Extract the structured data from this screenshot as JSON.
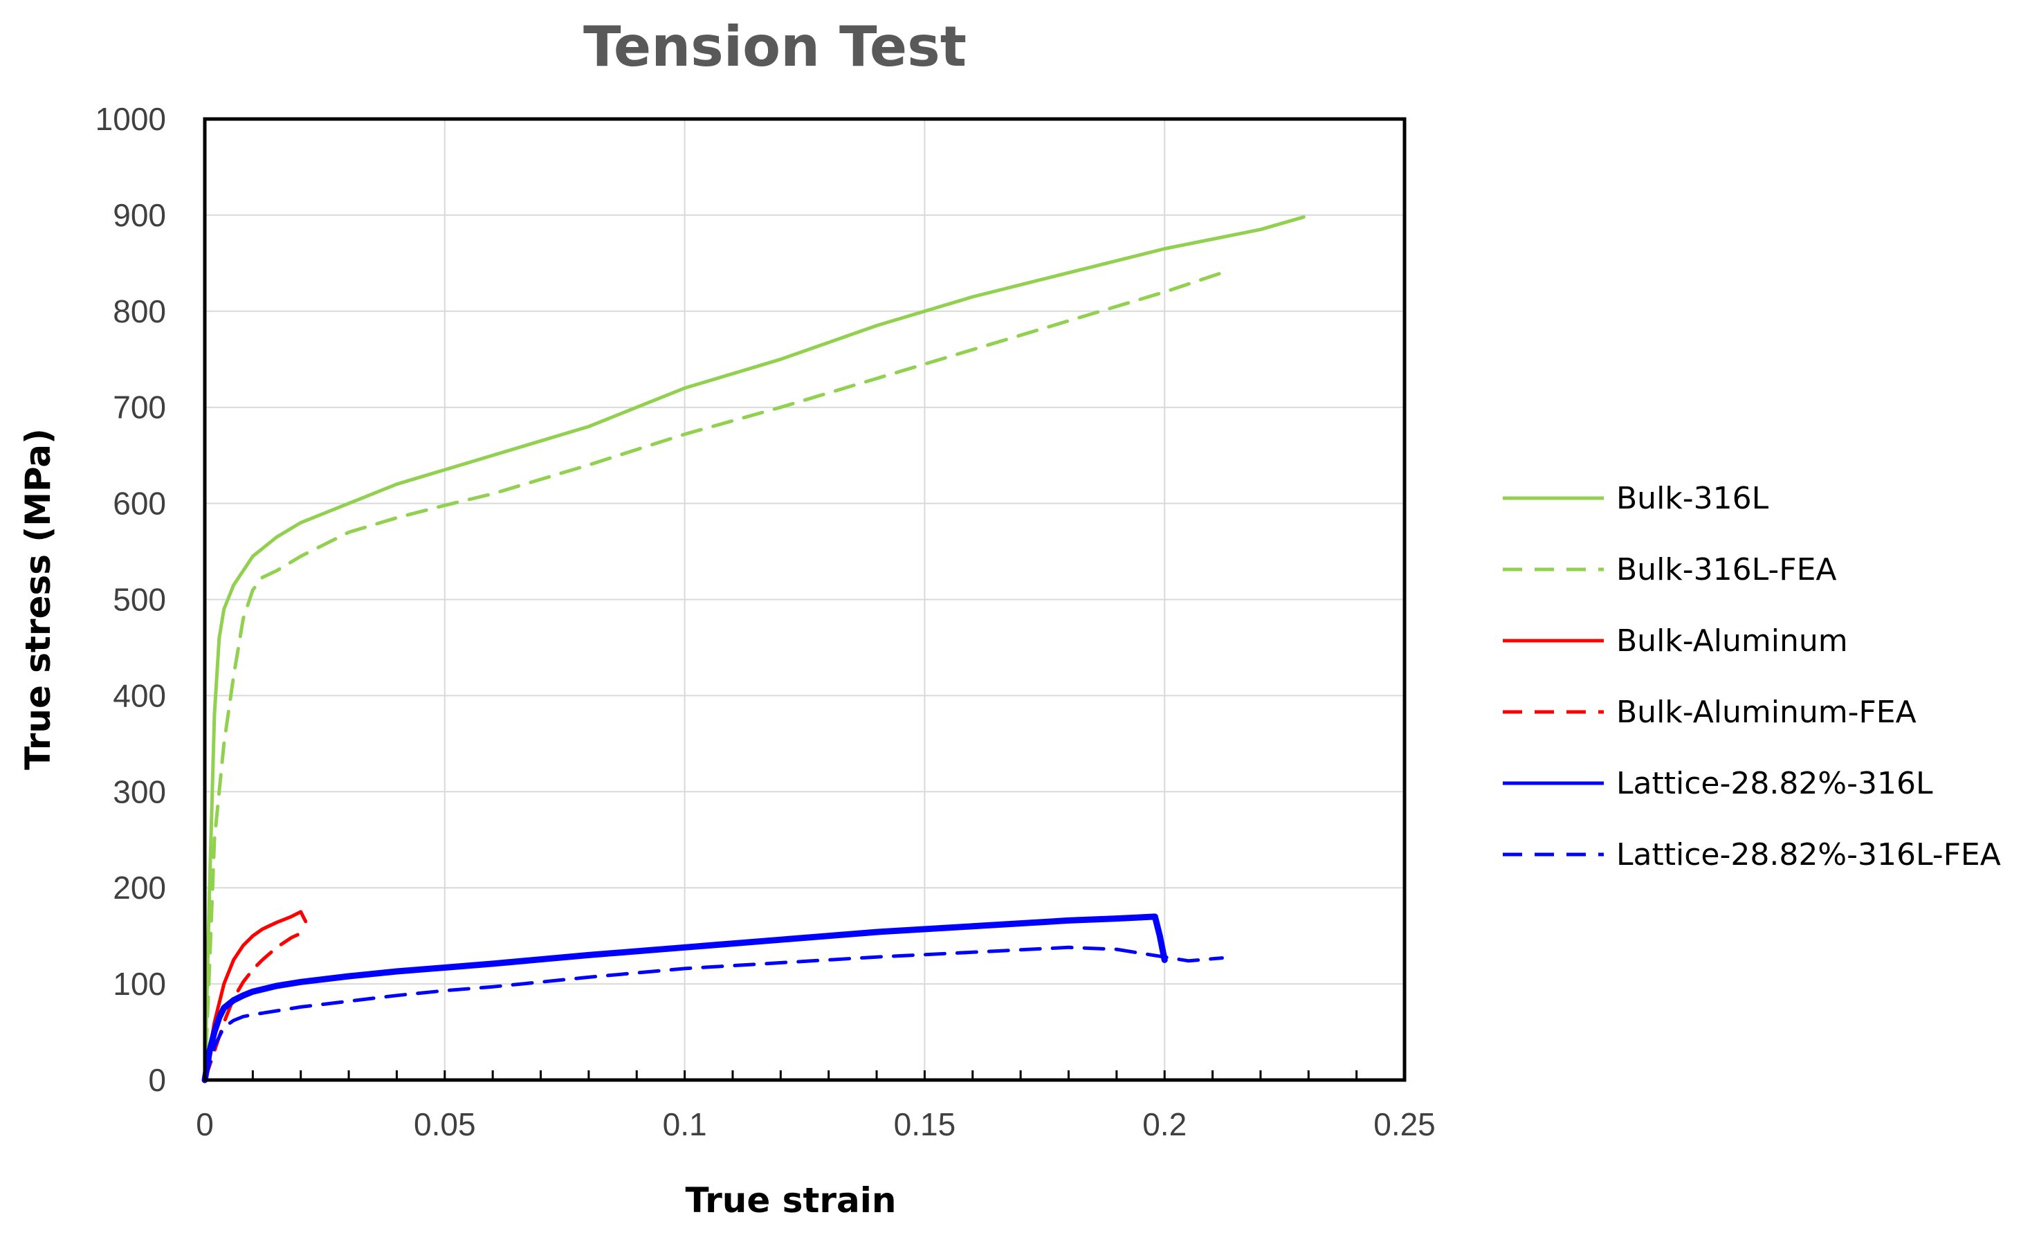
{
  "chart_data": {
    "type": "line",
    "title": "Tension Test",
    "xlabel": "True strain",
    "ylabel": "True stress (MPa)",
    "xlim": [
      0,
      0.25
    ],
    "ylim": [
      0,
      1000
    ],
    "x_ticks": [
      "0",
      "0.05",
      "0.1",
      "0.15",
      "0.2",
      "0.25"
    ],
    "y_ticks": [
      "0",
      "100",
      "200",
      "300",
      "400",
      "500",
      "600",
      "700",
      "800",
      "900",
      "1000"
    ],
    "grid": true,
    "legend_position": "right",
    "series": [
      {
        "name": "Bulk-316L",
        "color": "#92d050",
        "dash": "solid",
        "x": [
          0,
          0.001,
          0.002,
          0.003,
          0.004,
          0.006,
          0.01,
          0.015,
          0.02,
          0.03,
          0.04,
          0.05,
          0.06,
          0.07,
          0.08,
          0.09,
          0.1,
          0.12,
          0.14,
          0.16,
          0.18,
          0.2,
          0.22,
          0.229
        ],
        "y": [
          0,
          200,
          380,
          460,
          490,
          515,
          545,
          565,
          580,
          600,
          620,
          635,
          650,
          665,
          680,
          700,
          720,
          750,
          785,
          815,
          840,
          865,
          885,
          898
        ]
      },
      {
        "name": "Bulk-316L-FEA",
        "color": "#92d050",
        "dash": "dashed",
        "x": [
          0,
          0.001,
          0.002,
          0.004,
          0.006,
          0.008,
          0.01,
          0.012,
          0.015,
          0.02,
          0.03,
          0.04,
          0.05,
          0.06,
          0.08,
          0.1,
          0.12,
          0.15,
          0.18,
          0.2,
          0.212
        ],
        "y": [
          0,
          120,
          250,
          350,
          420,
          480,
          510,
          523,
          530,
          545,
          570,
          585,
          598,
          610,
          640,
          672,
          700,
          745,
          790,
          820,
          840
        ]
      },
      {
        "name": "Bulk-Aluminum",
        "color": "#ff0000",
        "dash": "solid",
        "x": [
          0,
          0.002,
          0.004,
          0.006,
          0.008,
          0.01,
          0.012,
          0.015,
          0.018,
          0.02,
          0.021
        ],
        "y": [
          0,
          60,
          100,
          125,
          140,
          150,
          157,
          164,
          170,
          175,
          165
        ]
      },
      {
        "name": "Bulk-Aluminum-FEA",
        "color": "#ff0000",
        "dash": "dashed",
        "x": [
          0,
          0.002,
          0.004,
          0.006,
          0.008,
          0.01,
          0.012,
          0.015,
          0.018,
          0.021
        ],
        "y": [
          0,
          30,
          60,
          85,
          102,
          115,
          125,
          138,
          148,
          155
        ]
      },
      {
        "name": "Lattice-28.82%-316L",
        "color": "#0000ff",
        "dash": "solid",
        "x": [
          0,
          0.001,
          0.002,
          0.003,
          0.004,
          0.006,
          0.008,
          0.01,
          0.015,
          0.02,
          0.03,
          0.04,
          0.05,
          0.06,
          0.08,
          0.1,
          0.12,
          0.14,
          0.16,
          0.18,
          0.19,
          0.198,
          0.199,
          0.2
        ],
        "y": [
          0,
          30,
          50,
          65,
          75,
          83,
          88,
          92,
          98,
          102,
          108,
          113,
          117,
          121,
          130,
          138,
          146,
          154,
          160,
          166,
          168,
          170,
          150,
          125
        ]
      },
      {
        "name": "Lattice-28.82%-316L-FEA",
        "color": "#0000ff",
        "dash": "dashed",
        "x": [
          0,
          0.002,
          0.004,
          0.006,
          0.008,
          0.01,
          0.015,
          0.02,
          0.03,
          0.04,
          0.05,
          0.06,
          0.08,
          0.1,
          0.12,
          0.14,
          0.16,
          0.18,
          0.19,
          0.195,
          0.2,
          0.205,
          0.212
        ],
        "y": [
          0,
          35,
          55,
          62,
          66,
          68,
          72,
          76,
          82,
          88,
          93,
          97,
          107,
          116,
          122,
          128,
          133,
          138,
          136,
          132,
          128,
          124,
          127
        ]
      }
    ]
  }
}
